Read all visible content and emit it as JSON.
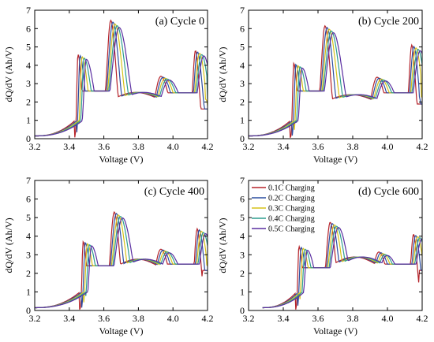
{
  "legend_labels": [
    "0.1C Charging",
    "0.2C Charging",
    "0.3C Charging",
    "0.4C Charging",
    "0.5C Charging"
  ],
  "series_colors": [
    "#b5232a",
    "#2c4ea1",
    "#d6c21a",
    "#2e9e8f",
    "#5a2ea1"
  ],
  "chart_data": [
    {
      "type": "line",
      "title": "(a) Cycle 0",
      "xlabel": "Voltage (V)",
      "ylabel": "dQ/dV (Ah/V)",
      "xlim": [
        3.2,
        4.2
      ],
      "ylim": [
        0,
        7
      ],
      "xticks": [
        "3.2",
        "3.4",
        "3.6",
        "3.8",
        "4.0",
        "4.2"
      ],
      "yticks": [
        "0",
        "1",
        "2",
        "3",
        "4",
        "5",
        "6",
        "7"
      ],
      "grid": false,
      "legend": "none",
      "x_start": 3.2,
      "peaks": [
        {
          "x": 3.45,
          "y": 4.6
        },
        {
          "x": 3.64,
          "y": 6.45
        },
        {
          "x": 3.93,
          "y": 3.4
        },
        {
          "x": 4.13,
          "y": 4.8
        }
      ],
      "valleys": [
        {
          "x": 3.52,
          "y": 2.6
        },
        {
          "x": 3.8,
          "y": 2.1
        },
        {
          "x": 4.05,
          "y": 2.5
        }
      ],
      "end_y": 1.8,
      "shift_per_rate": 0.012
    },
    {
      "type": "line",
      "title": "(b) Cycle 200",
      "xlabel": "Voltage (V)",
      "ylabel": "dQ/dV (Ah/V)",
      "xlim": [
        3.2,
        4.2
      ],
      "ylim": [
        0,
        7
      ],
      "xticks": [
        "3.2",
        "3.4",
        "3.6",
        "3.8",
        "4.0",
        "4.2"
      ],
      "yticks": [
        "0",
        "1",
        "2",
        "3",
        "4",
        "5",
        "6",
        "7"
      ],
      "grid": false,
      "legend": "none",
      "x_start": 3.2,
      "peaks": [
        {
          "x": 3.46,
          "y": 4.1
        },
        {
          "x": 3.64,
          "y": 6.15
        },
        {
          "x": 3.94,
          "y": 3.35
        },
        {
          "x": 4.14,
          "y": 5.1
        }
      ],
      "valleys": [
        {
          "x": 3.52,
          "y": 2.6
        },
        {
          "x": 3.82,
          "y": 2.0
        },
        {
          "x": 4.06,
          "y": 2.5
        }
      ],
      "end_y": 2.1,
      "shift_per_rate": 0.012
    },
    {
      "type": "line",
      "title": "(c) Cycle 400",
      "xlabel": "Voltage (V)",
      "ylabel": "dQ/dV (Ah/V)",
      "xlim": [
        3.2,
        4.2
      ],
      "ylim": [
        0,
        7
      ],
      "xticks": [
        "3.2",
        "3.4",
        "3.6",
        "3.8",
        "4.0",
        "4.2"
      ],
      "yticks": [
        "0",
        "1",
        "2",
        "3",
        "4",
        "5",
        "6",
        "7"
      ],
      "grid": false,
      "legend": "none",
      "x_start": 3.2,
      "peaks": [
        {
          "x": 3.48,
          "y": 3.7
        },
        {
          "x": 3.66,
          "y": 5.3
        },
        {
          "x": 3.93,
          "y": 3.3
        },
        {
          "x": 4.14,
          "y": 4.4
        }
      ],
      "valleys": [
        {
          "x": 3.53,
          "y": 2.4
        },
        {
          "x": 3.84,
          "y": 2.3
        },
        {
          "x": 4.06,
          "y": 2.5
        }
      ],
      "end_y": 2.4,
      "shift_per_rate": 0.012
    },
    {
      "type": "line",
      "title": "(d) Cycle 600",
      "xlabel": "Voltage (V)",
      "ylabel": "dQ/dV (Ah/V)",
      "xlim": [
        3.2,
        4.2
      ],
      "ylim": [
        0,
        7
      ],
      "xticks": [
        "3.2",
        "3.4",
        "3.6",
        "3.8",
        "4.0",
        "4.2"
      ],
      "yticks": [
        "0",
        "1",
        "2",
        "3",
        "4",
        "5",
        "6",
        "7"
      ],
      "grid": false,
      "legend": "top-left",
      "x_start": 3.28,
      "peaks": [
        {
          "x": 3.49,
          "y": 3.45
        },
        {
          "x": 3.67,
          "y": 4.75
        },
        {
          "x": 3.95,
          "y": 3.15
        },
        {
          "x": 4.15,
          "y": 4.1
        }
      ],
      "valleys": [
        {
          "x": 3.55,
          "y": 2.3
        },
        {
          "x": 3.84,
          "y": 2.4
        },
        {
          "x": 4.07,
          "y": 2.5
        }
      ],
      "end_y": 2.4,
      "shift_per_rate": 0.012
    }
  ]
}
